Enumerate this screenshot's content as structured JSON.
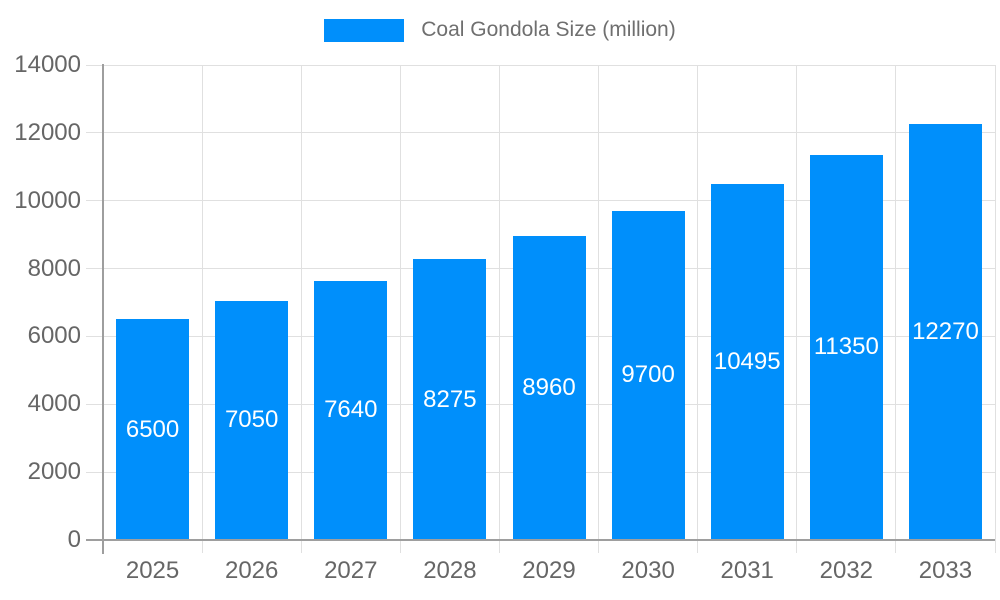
{
  "chart_data": {
    "type": "bar",
    "title": "Coal Gondola Size (million)",
    "categories": [
      "2025",
      "2026",
      "2027",
      "2028",
      "2029",
      "2030",
      "2031",
      "2032",
      "2033"
    ],
    "series": [
      {
        "name": "Coal Gondola Size (million)",
        "values": [
          6500,
          7050,
          7640,
          8275,
          8960,
          9700,
          10495,
          11350,
          12270
        ]
      }
    ],
    "xlabel": "",
    "ylabel": "",
    "ylim": [
      0,
      14000
    ],
    "yticks": [
      0,
      2000,
      4000,
      6000,
      8000,
      10000,
      12000,
      14000
    ],
    "grid": true,
    "legend_position": "top-center",
    "bar_labels_inside": true,
    "colors": {
      "bar": "#008ffb",
      "bar_label": "#ffffff",
      "axis_line": "#9e9e9e",
      "gridline": "#e0e0e0",
      "tick_label": "#666666",
      "legend_text": "#6f6f6f",
      "background": "#ffffff"
    }
  }
}
